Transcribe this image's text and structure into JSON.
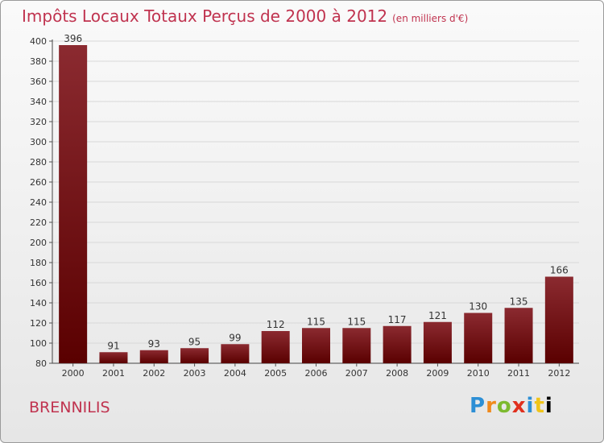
{
  "header": {
    "title": "Impôts Locaux Totaux Perçus de 2000 à 2012",
    "unit": "(en milliers d'€)"
  },
  "footer": {
    "commune": "BRENNILIS",
    "brand": "Proxiti"
  },
  "colors": {
    "bar_top": "#8b2a30",
    "bar_bottom": "#5a0000",
    "title": "#c0334f",
    "grid": "#d8d8d8"
  },
  "chart_data": {
    "type": "bar",
    "title": "Impôts Locaux Totaux Perçus de 2000 à 2012",
    "unit": "(en milliers d'€)",
    "categories": [
      "2000",
      "2001",
      "2002",
      "2003",
      "2004",
      "2005",
      "2006",
      "2007",
      "2008",
      "2009",
      "2010",
      "2011",
      "2012"
    ],
    "values": [
      396,
      91,
      93,
      95,
      99,
      112,
      115,
      115,
      117,
      121,
      130,
      135,
      166
    ],
    "ylim": [
      80,
      400
    ],
    "yticks": [
      80,
      100,
      120,
      140,
      160,
      180,
      200,
      220,
      240,
      260,
      280,
      300,
      320,
      340,
      360,
      380,
      400
    ],
    "grid": true,
    "data_labels": true
  }
}
